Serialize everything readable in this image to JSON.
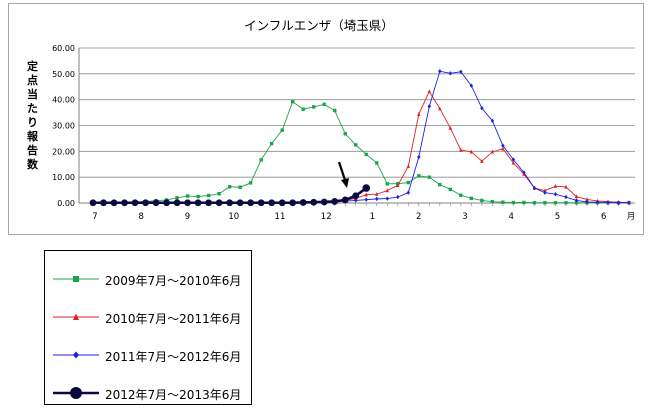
{
  "chart_data": {
    "type": "line",
    "title": "インフルエンザ（埼玉県）",
    "ylabel": "定点当たり報告数",
    "xlabel": "",
    "ylim": [
      0,
      60
    ],
    "yticks": [
      "0.00",
      "10.00",
      "20.00",
      "30.00",
      "40.00",
      "50.00",
      "60.00"
    ],
    "x_week_ticks": [
      "7",
      "8",
      "9",
      "10",
      "11",
      "12",
      "1",
      "2",
      "3",
      "4",
      "5",
      "6"
    ],
    "month_suffix": "月",
    "grid": true,
    "legend_position": "below",
    "series": [
      {
        "name": "2009年7月～2010年6月",
        "color": "#1aa54a",
        "marker": "square",
        "values": [
          0.1,
          0.2,
          0.2,
          0.3,
          0.4,
          0.6,
          0.9,
          1.2,
          2.0,
          2.7,
          2.5,
          2.9,
          3.6,
          6.3,
          6.1,
          7.8,
          16.7,
          23.0,
          28.2,
          39.2,
          36.3,
          37.2,
          38.2,
          35.8,
          26.8,
          22.5,
          18.8,
          15.5,
          7.4,
          7.5,
          7.9,
          10.5,
          10.0,
          7.1,
          5.3,
          3.0,
          1.8,
          1.0,
          0.5,
          0.3,
          0.2,
          0.2,
          0.1,
          0.1,
          0.1,
          0.1,
          0.1,
          0.1,
          0.1,
          0.1,
          0.1,
          0.1
        ]
      },
      {
        "name": "2010年7月～2011年6月",
        "color": "#e02020",
        "marker": "triangle",
        "values": [
          0.1,
          0.1,
          0.1,
          0.1,
          0.1,
          0.1,
          0.1,
          0.1,
          0.1,
          0.1,
          0.1,
          0.1,
          0.1,
          0.1,
          0.1,
          0.1,
          0.1,
          0.1,
          0.1,
          0.2,
          0.2,
          0.3,
          0.4,
          0.5,
          1.0,
          1.8,
          3.2,
          3.4,
          4.8,
          6.8,
          14.2,
          34.4,
          43.2,
          36.5,
          29.0,
          20.5,
          19.8,
          16.2,
          19.8,
          21.0,
          15.5,
          11.2,
          5.8,
          4.8,
          6.5,
          6.2,
          2.5,
          1.4,
          0.8,
          0.5,
          0.3,
          0.2
        ]
      },
      {
        "name": "2011年7月～2012年6月",
        "color": "#2020e0",
        "marker": "diamond",
        "values": [
          0.1,
          0.1,
          0.1,
          0.1,
          0.1,
          0.1,
          0.1,
          0.1,
          0.1,
          0.1,
          0.1,
          0.1,
          0.1,
          0.1,
          0.1,
          0.1,
          0.1,
          0.1,
          0.1,
          0.2,
          0.2,
          0.2,
          0.3,
          0.4,
          0.7,
          1.0,
          1.3,
          1.6,
          1.7,
          2.3,
          4.0,
          17.8,
          37.4,
          51.0,
          50.2,
          50.8,
          45.4,
          36.7,
          31.8,
          22.2,
          16.8,
          11.8,
          5.8,
          4.0,
          3.4,
          2.3,
          1.0,
          0.4,
          0.3,
          0.2,
          0.1,
          0.1
        ]
      },
      {
        "name": "2012年7月～2013年6月",
        "color": "#0a0a40",
        "marker": "circle",
        "values": [
          0.1,
          0.1,
          0.1,
          0.1,
          0.1,
          0.1,
          0.1,
          0.1,
          0.1,
          0.1,
          0.1,
          0.1,
          0.1,
          0.1,
          0.1,
          0.1,
          0.1,
          0.1,
          0.1,
          0.1,
          0.2,
          0.3,
          0.4,
          0.6,
          1.2,
          2.8,
          5.8
        ]
      }
    ]
  }
}
